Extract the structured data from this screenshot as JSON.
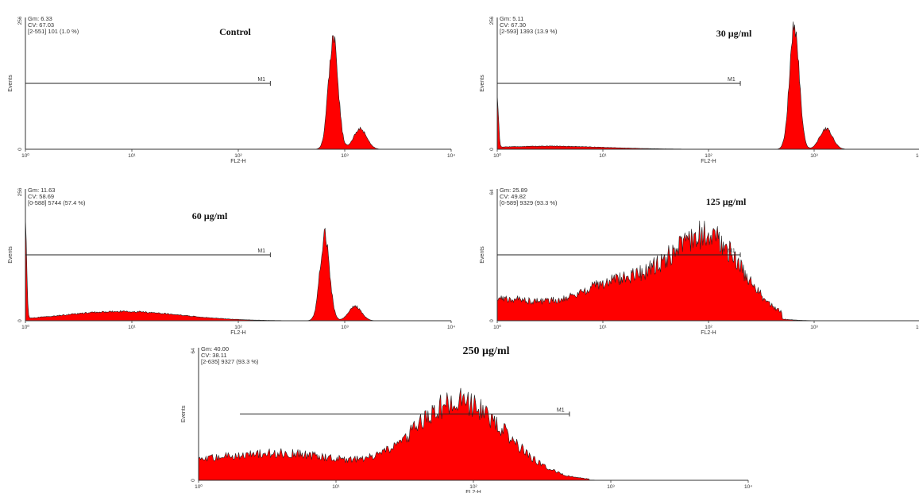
{
  "chart_data": [
    {
      "type": "area",
      "title": "Control",
      "xlabel": "FL2-H",
      "ylabel": "Events",
      "xscale": "log",
      "xlim": [
        1,
        10000
      ],
      "ylim": [
        0,
        256
      ],
      "yticks": [
        "0",
        "256"
      ],
      "xticks": [
        "10⁰",
        "10¹",
        "10²",
        "10³",
        "10⁴"
      ],
      "stats": {
        "gm": "Gm:  6.33",
        "cv": "CV:  67.03",
        "gate": "[2-551] 101   (1.0 %)"
      },
      "marker": {
        "label": "M1",
        "x_from": 1,
        "x_to": 200,
        "y": 128
      },
      "peaks": [
        {
          "x": 780,
          "height": 215
        },
        {
          "x": 1400,
          "height": 40
        }
      ],
      "color": "#ff0000"
    },
    {
      "type": "area",
      "title": "30 µg/ml",
      "xlabel": "FL2-H",
      "ylabel": "Events",
      "xscale": "log",
      "xlim": [
        1,
        10000
      ],
      "ylim": [
        0,
        256
      ],
      "yticks": [
        "0",
        "256"
      ],
      "xticks": [
        "10⁰",
        "10¹",
        "10²",
        "10³",
        "10⁴"
      ],
      "stats": {
        "gm": "Gm:  5.11",
        "cv": "CV:  67.30",
        "gate": "[2-593] 1393   (13.9 %)"
      },
      "marker": {
        "label": "M1",
        "x_from": 1,
        "x_to": 200,
        "y": 128
      },
      "peaks": [
        {
          "x": 1,
          "height": 100
        },
        {
          "x": 3,
          "height": 6
        },
        {
          "x": 650,
          "height": 245
        },
        {
          "x": 1300,
          "height": 40
        }
      ],
      "color": "#ff0000"
    },
    {
      "type": "area",
      "title": "60 µg/ml",
      "xlabel": "FL2-H",
      "ylabel": "Events",
      "xscale": "log",
      "xlim": [
        1,
        10000
      ],
      "ylim": [
        0,
        256
      ],
      "yticks": [
        "0",
        "256"
      ],
      "xticks": [
        "10⁰",
        "10¹",
        "10²",
        "10³",
        "10⁴"
      ],
      "stats": {
        "gm": "Gm:  11.63",
        "cv": "CV:  58.69",
        "gate": "[0-588] 5744   (57.4 %)"
      },
      "marker": {
        "label": "M1",
        "x_from": 1,
        "x_to": 200,
        "y": 128
      },
      "peaks": [
        {
          "x": 1,
          "height": 180
        },
        {
          "x": 8,
          "height": 18
        },
        {
          "x": 650,
          "height": 165
        },
        {
          "x": 1250,
          "height": 28
        }
      ],
      "color": "#ff0000"
    },
    {
      "type": "area",
      "title": "125 µg/ml",
      "xlabel": "FL2-H",
      "ylabel": "Events",
      "xscale": "log",
      "xlim": [
        1,
        10000
      ],
      "ylim": [
        0,
        64
      ],
      "yticks": [
        "0",
        "64"
      ],
      "xticks": [
        "10⁰",
        "10¹",
        "10²",
        "10³",
        "10⁴"
      ],
      "stats": {
        "gm": "Gm:  25.89",
        "cv": "CV:  49.82",
        "gate": "[0-589] 9329   (93.3 %)"
      },
      "marker": {
        "label": "M1",
        "x_from": 1,
        "x_to": 200,
        "y": 32
      },
      "peaks": [
        {
          "x": 1,
          "height": 10
        },
        {
          "x": 15,
          "height": 19
        },
        {
          "x": 100,
          "height": 38
        }
      ],
      "color": "#ff0000"
    },
    {
      "type": "area",
      "title": "250 µg/ml",
      "xlabel": "FL2-H",
      "ylabel": "Events",
      "xscale": "log",
      "xlim": [
        1,
        10000
      ],
      "ylim": [
        0,
        64
      ],
      "yticks": [
        "0",
        "64"
      ],
      "xticks": [
        "10⁰",
        "10¹",
        "10²",
        "10³",
        "10⁴"
      ],
      "stats": {
        "gm": "Gm:  40.00",
        "cv": "CV:  38.11",
        "gate": "[2-635] 9327   (93.3 %)"
      },
      "marker": {
        "label": "M1",
        "x_from": 2,
        "x_to": 500,
        "y": 32
      },
      "peaks": [
        {
          "x": 1,
          "height": 6
        },
        {
          "x": 5,
          "height": 12
        },
        {
          "x": 80,
          "height": 38
        }
      ],
      "color": "#ff0000"
    }
  ]
}
